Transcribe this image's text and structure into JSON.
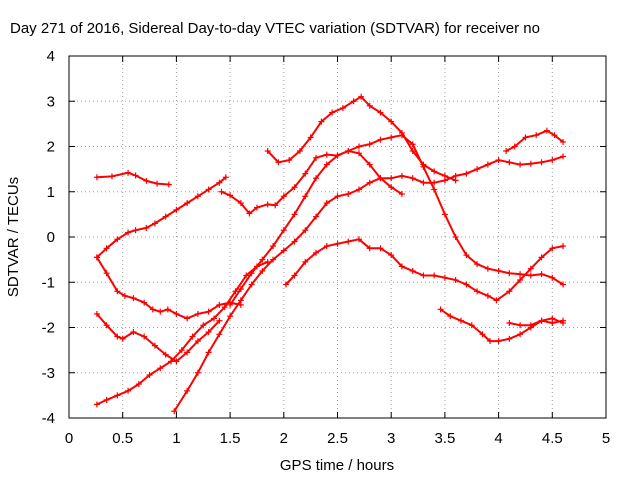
{
  "chart_data": {
    "type": "scatter",
    "title": "Day 271 of 2016, Sidereal Day-to-day VTEC variation (SDTVAR) for receiver no",
    "xlabel": "GPS time / hours",
    "ylabel": "SDTVAR / TECUs",
    "xlim": [
      0,
      5
    ],
    "ylim": [
      -4,
      4
    ],
    "xticks": [
      0,
      0.5,
      1,
      1.5,
      2,
      2.5,
      3,
      3.5,
      4,
      4.5,
      5
    ],
    "xtick_labels": [
      "0",
      "0.5",
      "1",
      "1.5",
      "2",
      "2.5",
      "3",
      "3.5",
      "4",
      "4.5",
      "5"
    ],
    "yticks": [
      -4,
      -3,
      -2,
      -1,
      0,
      1,
      2,
      3,
      4
    ],
    "ytick_labels": [
      "-4",
      "-3",
      "-2",
      "-1",
      "0",
      "1",
      "2",
      "3",
      "4"
    ],
    "grid": true,
    "marker": "plus",
    "color": "#ff0000",
    "series": [
      {
        "name": "s1",
        "x": [
          0.26,
          0.4,
          0.55,
          0.62,
          0.72,
          0.82,
          0.93
        ],
        "y": [
          1.32,
          1.34,
          1.42,
          1.36,
          1.24,
          1.18,
          1.16
        ]
      },
      {
        "name": "s2",
        "x": [
          0.26,
          0.35,
          0.45,
          0.55,
          0.62,
          0.72,
          0.8,
          0.9,
          1.0,
          1.1,
          1.2,
          1.3,
          1.4,
          1.46
        ],
        "y": [
          -0.45,
          -0.25,
          -0.05,
          0.1,
          0.15,
          0.2,
          0.3,
          0.45,
          0.6,
          0.75,
          0.9,
          1.05,
          1.2,
          1.32
        ]
      },
      {
        "name": "s3",
        "x": [
          0.26,
          0.35,
          0.45,
          0.52,
          0.6,
          0.7,
          0.78,
          0.85,
          0.92,
          1.0,
          1.1,
          1.2,
          1.3,
          1.4,
          1.5,
          1.6
        ],
        "y": [
          -0.45,
          -0.8,
          -1.2,
          -1.3,
          -1.35,
          -1.45,
          -1.6,
          -1.65,
          -1.6,
          -1.7,
          -1.8,
          -1.7,
          -1.65,
          -1.5,
          -1.45,
          -1.5
        ]
      },
      {
        "name": "s4",
        "x": [
          0.26,
          0.35,
          0.45,
          0.5,
          0.6,
          0.7,
          0.8,
          0.9,
          1.0,
          1.1,
          1.2,
          1.3,
          1.4
        ],
        "y": [
          -1.7,
          -1.95,
          -2.2,
          -2.25,
          -2.1,
          -2.2,
          -2.4,
          -2.6,
          -2.75,
          -2.55,
          -2.3,
          -2.1,
          -1.85
        ]
      },
      {
        "name": "s5",
        "x": [
          0.26,
          0.35,
          0.45,
          0.55,
          0.65,
          0.75,
          0.85,
          0.95,
          1.05,
          1.15,
          1.25,
          1.35,
          1.45,
          1.55,
          1.65,
          1.75,
          1.85
        ],
        "y": [
          -3.7,
          -3.6,
          -3.5,
          -3.4,
          -3.25,
          -3.05,
          -2.9,
          -2.75,
          -2.5,
          -2.2,
          -1.95,
          -1.8,
          -1.55,
          -1.2,
          -0.85,
          -0.65,
          -0.55
        ]
      },
      {
        "name": "s6",
        "x": [
          0.98,
          1.1,
          1.2,
          1.3,
          1.4,
          1.5,
          1.6,
          1.7,
          1.8,
          1.9,
          2.0,
          2.1,
          2.2,
          2.3,
          2.4,
          2.5,
          2.6,
          2.7,
          2.8,
          2.9,
          3.0,
          3.1,
          3.2,
          3.3,
          3.4,
          3.5,
          3.6,
          3.7,
          3.8,
          3.9,
          4.0,
          4.1,
          4.2,
          4.3,
          4.4,
          4.5,
          4.6
        ],
        "y": [
          -3.85,
          -3.4,
          -3.0,
          -2.55,
          -2.15,
          -1.75,
          -1.4,
          -1.05,
          -0.75,
          -0.5,
          -0.3,
          -0.1,
          0.15,
          0.45,
          0.75,
          0.9,
          0.95,
          1.05,
          1.2,
          1.3,
          1.3,
          1.35,
          1.3,
          1.2,
          1.2,
          1.25,
          1.35,
          1.4,
          1.5,
          1.6,
          1.7,
          1.65,
          1.6,
          1.62,
          1.65,
          1.7,
          1.78
        ]
      },
      {
        "name": "s7",
        "x": [
          1.5,
          1.6,
          1.7,
          1.8,
          1.9,
          2.0,
          2.1,
          2.2,
          2.3,
          2.4,
          2.5,
          2.6,
          2.7,
          2.8,
          2.9,
          3.0,
          3.1
        ],
        "y": [
          -1.5,
          -1.15,
          -0.8,
          -0.5,
          -0.2,
          0.15,
          0.5,
          0.9,
          1.3,
          1.6,
          1.8,
          1.9,
          1.85,
          1.6,
          1.3,
          1.1,
          0.95
        ]
      },
      {
        "name": "s8",
        "x": [
          1.42,
          1.5,
          1.6,
          1.68,
          1.75,
          1.85,
          1.92,
          2.0,
          2.1,
          2.2,
          2.3,
          2.4,
          2.5,
          2.6,
          2.7,
          2.8,
          2.9,
          3.0,
          3.1,
          3.2,
          3.3,
          3.4,
          3.5,
          3.6,
          3.7,
          3.8,
          3.9,
          4.0,
          4.1,
          4.2,
          4.3,
          4.4,
          4.5,
          4.6
        ],
        "y": [
          1.0,
          0.92,
          0.75,
          0.52,
          0.65,
          0.72,
          0.7,
          0.9,
          1.1,
          1.4,
          1.75,
          1.82,
          1.8,
          1.9,
          2.0,
          2.05,
          2.15,
          2.2,
          2.25,
          2.05,
          1.55,
          1.05,
          0.5,
          0.0,
          -0.4,
          -0.6,
          -0.7,
          -0.75,
          -0.8,
          -0.82,
          -0.85,
          -0.82,
          -0.9,
          -1.05
        ]
      },
      {
        "name": "s9",
        "x": [
          1.85,
          1.95,
          2.05,
          2.15,
          2.25,
          2.35,
          2.45,
          2.55,
          2.65,
          2.72,
          2.8,
          2.9,
          3.0,
          3.1,
          3.2,
          3.3,
          3.4,
          3.5,
          3.6
        ],
        "y": [
          1.9,
          1.65,
          1.7,
          1.9,
          2.2,
          2.55,
          2.75,
          2.85,
          3.0,
          3.1,
          2.9,
          2.75,
          2.55,
          2.3,
          1.9,
          1.6,
          1.45,
          1.35,
          1.25
        ]
      },
      {
        "name": "s10",
        "x": [
          2.02,
          2.1,
          2.2,
          2.3,
          2.4,
          2.5,
          2.6,
          2.7,
          2.8,
          2.9,
          3.0,
          3.1,
          3.2,
          3.3,
          3.4,
          3.5,
          3.6,
          3.7,
          3.8,
          3.9,
          3.98,
          4.1,
          4.2,
          4.3,
          4.4,
          4.5,
          4.6
        ],
        "y": [
          -1.05,
          -0.85,
          -0.55,
          -0.35,
          -0.2,
          -0.15,
          -0.1,
          -0.05,
          -0.25,
          -0.25,
          -0.4,
          -0.65,
          -0.75,
          -0.85,
          -0.85,
          -0.9,
          -0.95,
          -1.05,
          -1.2,
          -1.3,
          -1.4,
          -1.2,
          -0.95,
          -0.7,
          -0.45,
          -0.25,
          -0.2
        ]
      },
      {
        "name": "s11",
        "x": [
          3.46,
          3.55,
          3.65,
          3.75,
          3.85,
          3.92,
          4.0,
          4.1,
          4.2,
          4.3,
          4.4,
          4.5,
          4.6
        ],
        "y": [
          -1.6,
          -1.75,
          -1.85,
          -1.95,
          -2.15,
          -2.3,
          -2.3,
          -2.25,
          -2.15,
          -2.0,
          -1.85,
          -1.8,
          -1.9
        ]
      },
      {
        "name": "s12",
        "x": [
          4.07,
          4.15,
          4.25,
          4.35,
          4.45,
          4.52,
          4.6
        ],
        "y": [
          1.9,
          2.0,
          2.2,
          2.25,
          2.35,
          2.25,
          2.1
        ]
      },
      {
        "name": "s13",
        "x": [
          4.1,
          4.2,
          4.3,
          4.4,
          4.5,
          4.6
        ],
        "y": [
          -1.9,
          -1.95,
          -1.95,
          -1.85,
          -1.9,
          -1.85
        ]
      }
    ]
  }
}
